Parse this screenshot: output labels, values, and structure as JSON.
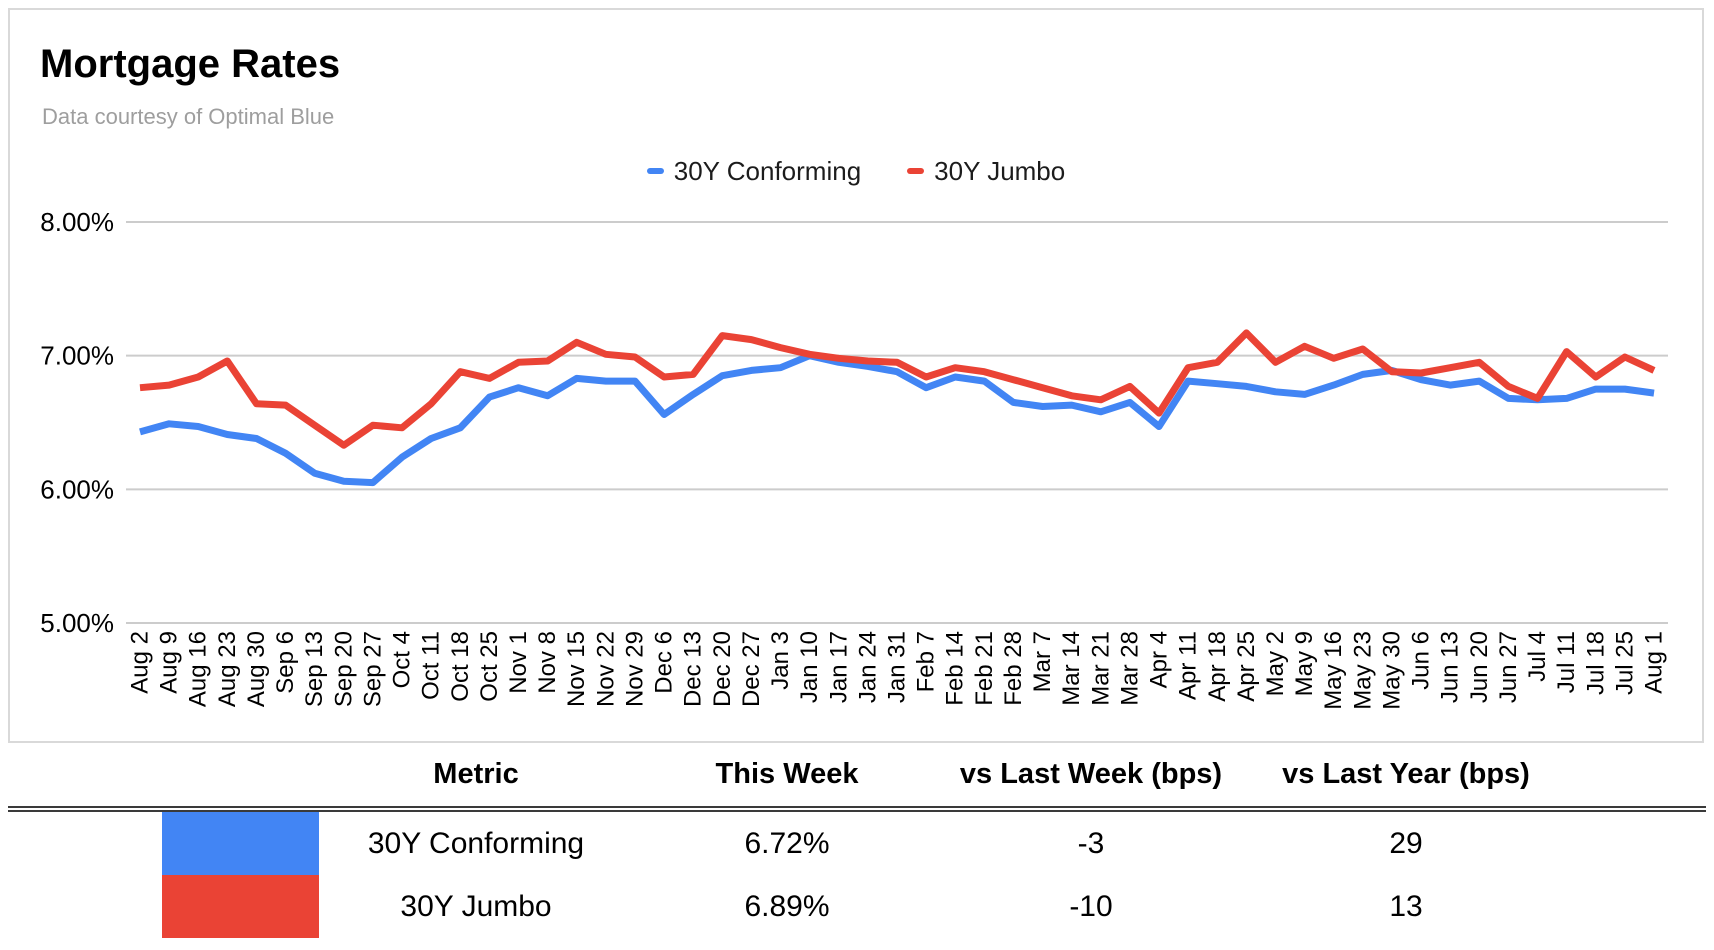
{
  "card": {
    "title": "Mortgage Rates",
    "subtitle": "Data courtesy of Optimal Blue"
  },
  "legend": [
    {
      "label": "30Y Conforming",
      "color": "#4285F4"
    },
    {
      "label": "30Y Jumbo",
      "color": "#EA4335"
    }
  ],
  "chart_data": {
    "type": "line",
    "title": "Mortgage Rates",
    "subtitle": "Data courtesy of Optimal Blue",
    "xlabel": "",
    "ylabel": "",
    "legend_position": "top",
    "grid": true,
    "ylim": [
      5,
      8
    ],
    "ytick_values": [
      8,
      7,
      6,
      5
    ],
    "ytick_labels": [
      "8.00%",
      "7.00%",
      "6.00%",
      "5.00%"
    ],
    "x": [
      "Aug 2",
      "Aug 9",
      "Aug 16",
      "Aug 23",
      "Aug 30",
      "Sep 6",
      "Sep 13",
      "Sep 20",
      "Sep 27",
      "Oct 4",
      "Oct 11",
      "Oct 18",
      "Oct 25",
      "Nov 1",
      "Nov 8",
      "Nov 15",
      "Nov 22",
      "Nov 29",
      "Dec 6",
      "Dec 13",
      "Dec 20",
      "Dec 27",
      "Jan 3",
      "Jan 10",
      "Jan 17",
      "Jan 24",
      "Jan 31",
      "Feb 7",
      "Feb 14",
      "Feb 21",
      "Feb 28",
      "Mar 7",
      "Mar 14",
      "Mar 21",
      "Mar 28",
      "Apr 4",
      "Apr 11",
      "Apr 18",
      "Apr 25",
      "May 2",
      "May 9",
      "May 16",
      "May 23",
      "May 30",
      "Jun 6",
      "Jun 13",
      "Jun 20",
      "Jun 27",
      "Jul 4",
      "Jul 11",
      "Jul 18",
      "Jul 25",
      "Aug 1"
    ],
    "series": [
      {
        "name": "30Y Conforming",
        "color": "#4285F4",
        "values": [
          6.43,
          6.49,
          6.47,
          6.41,
          6.38,
          6.27,
          6.12,
          6.06,
          6.05,
          6.24,
          6.38,
          6.46,
          6.69,
          6.76,
          6.7,
          6.83,
          6.81,
          6.81,
          6.56,
          6.71,
          6.85,
          6.89,
          6.91,
          7.0,
          6.95,
          6.92,
          6.88,
          6.76,
          6.84,
          6.81,
          6.65,
          6.62,
          6.63,
          6.58,
          6.65,
          6.47,
          6.81,
          6.79,
          6.77,
          6.73,
          6.71,
          6.78,
          6.86,
          6.89,
          6.82,
          6.78,
          6.81,
          6.68,
          6.67,
          6.68,
          6.75,
          6.75,
          6.72
        ]
      },
      {
        "name": "30Y Jumbo",
        "color": "#EA4335",
        "values": [
          6.76,
          6.78,
          6.84,
          6.96,
          6.64,
          6.63,
          6.48,
          6.33,
          6.48,
          6.46,
          6.64,
          6.88,
          6.83,
          6.95,
          6.96,
          7.1,
          7.01,
          6.99,
          6.84,
          6.86,
          7.15,
          7.12,
          7.06,
          7.01,
          6.98,
          6.96,
          6.95,
          6.84,
          6.91,
          6.88,
          6.82,
          6.76,
          6.7,
          6.67,
          6.77,
          6.57,
          6.91,
          6.95,
          7.17,
          6.95,
          7.07,
          6.98,
          7.05,
          6.88,
          6.87,
          6.91,
          6.95,
          6.77,
          6.68,
          7.03,
          6.84,
          6.99,
          6.89
        ]
      }
    ]
  },
  "table": {
    "headers": [
      "Metric",
      "This Week",
      "vs Last Week (bps)",
      "vs Last Year (bps)"
    ],
    "rows": [
      {
        "swatch": "#4285F4",
        "metric": "30Y Conforming",
        "this_week": "6.72%",
        "vs_last_week": "-3",
        "vs_last_year": "29"
      },
      {
        "swatch": "#EA4335",
        "metric": "30Y Jumbo",
        "this_week": "6.89%",
        "vs_last_week": "-10",
        "vs_last_year": "13"
      }
    ]
  }
}
